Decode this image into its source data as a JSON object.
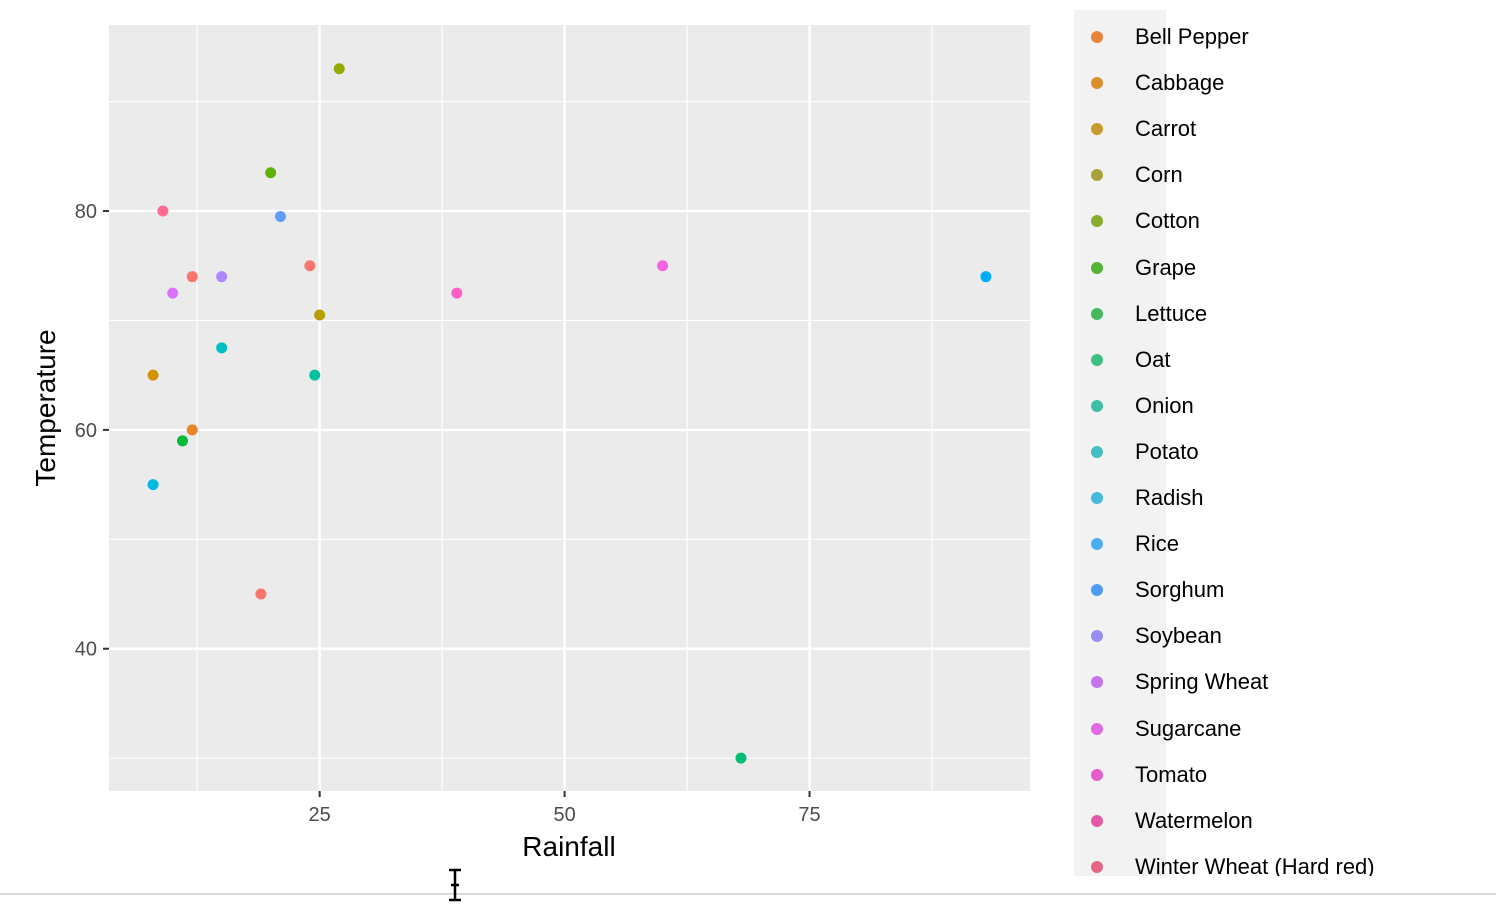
{
  "chart_data": {
    "type": "scatter",
    "title": "",
    "xlabel": "Rainfall",
    "ylabel": "Temperature",
    "xlim": [
      3.5,
      97.5
    ],
    "ylim": [
      27,
      97
    ],
    "x_major_ticks": [
      25,
      50,
      75
    ],
    "x_minor_ticks": [
      12.5,
      37.5,
      62.5,
      87.5
    ],
    "y_major_ticks": [
      40,
      60,
      80
    ],
    "y_minor_ticks": [
      30,
      50,
      70,
      90
    ],
    "grid": true,
    "legend_position": "right",
    "series": [
      {
        "name": "Bell Pepper",
        "color": "#F8766D",
        "points": [
          {
            "x": 24,
            "y": 75
          }
        ]
      },
      {
        "name": "Cabbage",
        "color": "#E88526",
        "points": [
          {
            "x": 12,
            "y": 60
          }
        ]
      },
      {
        "name": "Carrot",
        "color": "#D39200",
        "points": [
          {
            "x": 8,
            "y": 65
          }
        ]
      },
      {
        "name": "Corn",
        "color": "#B79F00",
        "points": [
          {
            "x": 25,
            "y": 70.5
          }
        ]
      },
      {
        "name": "Cotton",
        "color": "#93AA00",
        "points": [
          {
            "x": 27,
            "y": 93
          }
        ]
      },
      {
        "name": "Grape",
        "color": "#5EB300",
        "points": [
          {
            "x": 20,
            "y": 83.5
          }
        ]
      },
      {
        "name": "Lettuce",
        "color": "#00BA38",
        "points": [
          {
            "x": 11,
            "y": 59
          }
        ]
      },
      {
        "name": "Oat",
        "color": "#00BF74",
        "points": [
          {
            "x": 68,
            "y": 30
          }
        ]
      },
      {
        "name": "Onion",
        "color": "#00C19F",
        "points": [
          {
            "x": 24.5,
            "y": 65
          }
        ]
      },
      {
        "name": "Potato",
        "color": "#00BFC4",
        "points": [
          {
            "x": 15,
            "y": 67.5
          }
        ]
      },
      {
        "name": "Radish",
        "color": "#00B9E3",
        "points": [
          {
            "x": 8,
            "y": 55
          }
        ]
      },
      {
        "name": "Rice",
        "color": "#00ADFA",
        "points": [
          {
            "x": 93,
            "y": 74
          }
        ]
      },
      {
        "name": "Sorghum",
        "color": "#619CFF",
        "points": [
          {
            "x": 21,
            "y": 79.5
          }
        ]
      },
      {
        "name": "Soybean",
        "color": "#AE87FF",
        "points": [
          {
            "x": 15,
            "y": 74
          }
        ]
      },
      {
        "name": "Spring Wheat",
        "color": "#DB72FB",
        "points": [
          {
            "x": 10,
            "y": 72.5
          }
        ]
      },
      {
        "name": "Sugarcane",
        "color": "#F564E3",
        "points": [
          {
            "x": 60,
            "y": 75
          }
        ]
      },
      {
        "name": "Tomato",
        "color": "#FF61C3",
        "points": [
          {
            "x": 39,
            "y": 72.5
          }
        ]
      },
      {
        "name": "Watermelon",
        "color": "#FF6C91",
        "points": [
          {
            "x": 9,
            "y": 80
          }
        ]
      },
      {
        "name": "Winter Wheat (Hard red)",
        "color": "#F8766D",
        "points": [
          {
            "x": 19,
            "y": 45
          },
          {
            "x": 12,
            "y": 74
          }
        ]
      }
    ]
  },
  "legend": {
    "entries": [
      {
        "label": "Bell Pepper",
        "color": "#E8833A"
      },
      {
        "label": "Cabbage",
        "color": "#DB8E2E"
      },
      {
        "label": "Carrot",
        "color": "#C99A2E"
      },
      {
        "label": "Corn",
        "color": "#A9A23A"
      },
      {
        "label": "Cotton",
        "color": "#86AD32"
      },
      {
        "label": "Grape",
        "color": "#53B536"
      },
      {
        "label": "Lettuce",
        "color": "#45B95E"
      },
      {
        "label": "Oat",
        "color": "#3FBE85"
      },
      {
        "label": "Onion",
        "color": "#3EBFA5"
      },
      {
        "label": "Potato",
        "color": "#45BEC3"
      },
      {
        "label": "Radish",
        "color": "#45B9DB"
      },
      {
        "label": "Rice",
        "color": "#4BADF0"
      },
      {
        "label": "Sorghum",
        "color": "#4F9CF6"
      },
      {
        "label": "Soybean",
        "color": "#9A8DF2"
      },
      {
        "label": "Spring Wheat",
        "color": "#C672EE"
      },
      {
        "label": "Sugarcane",
        "color": "#E069E2"
      },
      {
        "label": "Tomato",
        "color": "#E65CCC"
      },
      {
        "label": "Watermelon",
        "color": "#E35BA6"
      },
      {
        "label": "Winter Wheat (Hard red)",
        "color": "#E56683"
      }
    ]
  },
  "colors": {
    "panel_background": "#EBEBEB",
    "gridline": "#FFFFFF",
    "legend_background": "#F2F2F2",
    "tick_text": "#4D4D4D"
  }
}
